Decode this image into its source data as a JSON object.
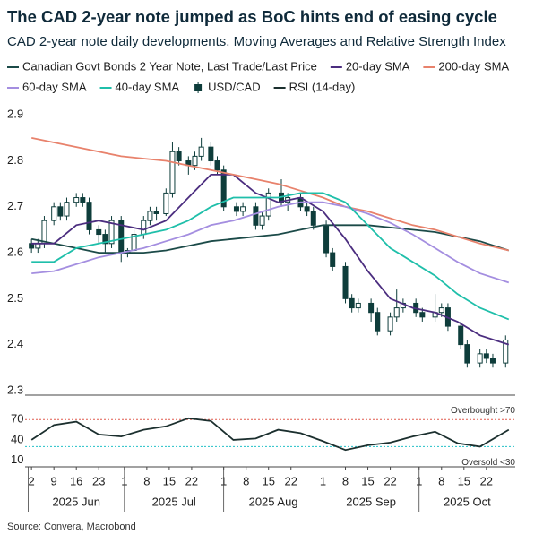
{
  "chart_data": [
    {
      "type": "candlestick",
      "title": "The CAD 2-year note jumped as BoC hints end of easing cycle",
      "subtitle": "CAD 2-year note daily developments, Moving Averages and Relative Strength Index",
      "source": "Source: Convera, Macrobond",
      "xlim": [
        "2025-05-31",
        "2025-10-31"
      ],
      "ylim": [
        2.29,
        2.92
      ],
      "yticks": [
        2.3,
        2.4,
        2.5,
        2.6,
        2.7,
        2.8,
        2.9
      ],
      "grid": false,
      "x": [
        "2025-06-02",
        "2025-06-09",
        "2025-06-16",
        "2025-06-23",
        "2025-06-30",
        "2025-07-07",
        "2025-07-14",
        "2025-07-21",
        "2025-07-28",
        "2025-08-04",
        "2025-08-11",
        "2025-08-18",
        "2025-08-25",
        "2025-09-01",
        "2025-09-08",
        "2025-09-15",
        "2025-09-22",
        "2025-09-29",
        "2025-10-06",
        "2025-10-13",
        "2025-10-20",
        "2025-10-29"
      ],
      "series": [
        {
          "name": "Canadian Govt Bonds 2 Year Note, Last Trade/Last Price",
          "color": "#1b4a48",
          "values": [
            2.63,
            2.62,
            2.61,
            2.6,
            2.6,
            2.6,
            2.605,
            2.615,
            2.625,
            2.63,
            2.635,
            2.64,
            2.65,
            2.66,
            2.66,
            2.66,
            2.655,
            2.65,
            2.645,
            2.635,
            2.625,
            2.605
          ]
        },
        {
          "name": "20-day SMA",
          "color": "#4b2d7f",
          "values": [
            2.62,
            2.62,
            2.66,
            2.67,
            2.66,
            2.65,
            2.67,
            2.72,
            2.77,
            2.77,
            2.73,
            2.71,
            2.72,
            2.69,
            2.63,
            2.56,
            2.5,
            2.48,
            2.47,
            2.45,
            2.42,
            2.4
          ]
        },
        {
          "name": "200-day SMA",
          "color": "#e8826c",
          "values": [
            2.85,
            2.84,
            2.83,
            2.82,
            2.81,
            2.805,
            2.8,
            2.79,
            2.78,
            2.77,
            2.76,
            2.75,
            2.735,
            2.72,
            2.7,
            2.69,
            2.675,
            2.66,
            2.65,
            2.635,
            2.62,
            2.605
          ]
        },
        {
          "name": "60-day SMA",
          "color": "#a48ee0",
          "values": [
            2.555,
            2.56,
            2.575,
            2.59,
            2.6,
            2.61,
            2.625,
            2.64,
            2.66,
            2.67,
            2.685,
            2.7,
            2.71,
            2.71,
            2.7,
            2.685,
            2.665,
            2.64,
            2.61,
            2.58,
            2.555,
            2.535
          ]
        },
        {
          "name": "40-day SMA",
          "color": "#1fbfaa",
          "values": [
            2.58,
            2.58,
            2.61,
            2.62,
            2.63,
            2.64,
            2.65,
            2.67,
            2.7,
            2.72,
            2.72,
            2.72,
            2.73,
            2.73,
            2.71,
            2.66,
            2.61,
            2.58,
            2.55,
            2.51,
            2.48,
            2.455
          ]
        }
      ],
      "candles": {
        "name": "USD/CAD",
        "up_color": "#ffffff",
        "down_color": "#0e3d3b",
        "edge_color": "#0e3d3b",
        "x": [
          "2025-06-02",
          "2025-06-04",
          "2025-06-06",
          "2025-06-09",
          "2025-06-11",
          "2025-06-13",
          "2025-06-16",
          "2025-06-18",
          "2025-06-20",
          "2025-06-23",
          "2025-06-25",
          "2025-06-27",
          "2025-06-30",
          "2025-07-02",
          "2025-07-04",
          "2025-07-07",
          "2025-07-09",
          "2025-07-11",
          "2025-07-14",
          "2025-07-16",
          "2025-07-18",
          "2025-07-21",
          "2025-07-23",
          "2025-07-25",
          "2025-07-28",
          "2025-07-30",
          "2025-08-01",
          "2025-08-05",
          "2025-08-07",
          "2025-08-11",
          "2025-08-13",
          "2025-08-15",
          "2025-08-19",
          "2025-08-21",
          "2025-08-25",
          "2025-08-27",
          "2025-08-29",
          "2025-09-02",
          "2025-09-04",
          "2025-09-08",
          "2025-09-10",
          "2025-09-12",
          "2025-09-16",
          "2025-09-18",
          "2025-09-22",
          "2025-09-24",
          "2025-09-26",
          "2025-09-30",
          "2025-10-02",
          "2025-10-06",
          "2025-10-08",
          "2025-10-10",
          "2025-10-14",
          "2025-10-16",
          "2025-10-20",
          "2025-10-22",
          "2025-10-24",
          "2025-10-28"
        ],
        "open": [
          2.62,
          2.61,
          2.62,
          2.67,
          2.7,
          2.68,
          2.71,
          2.72,
          2.71,
          2.65,
          2.64,
          2.62,
          2.67,
          2.6,
          2.605,
          2.64,
          2.67,
          2.69,
          2.685,
          2.73,
          2.82,
          2.8,
          2.79,
          2.81,
          2.83,
          2.8,
          2.78,
          2.7,
          2.69,
          2.7,
          2.66,
          2.68,
          2.73,
          2.71,
          2.72,
          2.7,
          2.69,
          2.66,
          2.6,
          2.57,
          2.5,
          2.48,
          2.49,
          2.47,
          2.43,
          2.46,
          2.48,
          2.49,
          2.47,
          2.46,
          2.47,
          2.48,
          2.44,
          2.4,
          2.36,
          2.38,
          2.37,
          2.36
        ],
        "high": [
          2.63,
          2.63,
          2.68,
          2.71,
          2.71,
          2.72,
          2.73,
          2.73,
          2.72,
          2.66,
          2.65,
          2.68,
          2.68,
          2.61,
          2.65,
          2.68,
          2.7,
          2.7,
          2.74,
          2.84,
          2.83,
          2.81,
          2.82,
          2.85,
          2.84,
          2.81,
          2.79,
          2.71,
          2.71,
          2.71,
          2.69,
          2.74,
          2.76,
          2.73,
          2.73,
          2.71,
          2.7,
          2.67,
          2.61,
          2.58,
          2.51,
          2.5,
          2.5,
          2.48,
          2.47,
          2.52,
          2.5,
          2.5,
          2.48,
          2.51,
          2.49,
          2.49,
          2.45,
          2.41,
          2.39,
          2.39,
          2.38,
          2.42
        ],
        "low": [
          2.6,
          2.6,
          2.61,
          2.66,
          2.67,
          2.67,
          2.7,
          2.7,
          2.64,
          2.62,
          2.6,
          2.61,
          2.58,
          2.59,
          2.6,
          2.63,
          2.66,
          2.67,
          2.68,
          2.72,
          2.79,
          2.77,
          2.78,
          2.8,
          2.79,
          2.77,
          2.69,
          2.68,
          2.68,
          2.65,
          2.65,
          2.67,
          2.7,
          2.69,
          2.69,
          2.68,
          2.65,
          2.59,
          2.56,
          2.49,
          2.47,
          2.47,
          2.45,
          2.42,
          2.42,
          2.45,
          2.47,
          2.46,
          2.45,
          2.45,
          2.46,
          2.43,
          2.39,
          2.35,
          2.35,
          2.36,
          2.35,
          2.35
        ],
        "close": [
          2.61,
          2.62,
          2.67,
          2.7,
          2.68,
          2.71,
          2.72,
          2.71,
          2.65,
          2.64,
          2.62,
          2.67,
          2.6,
          2.605,
          2.64,
          2.67,
          2.69,
          2.685,
          2.73,
          2.82,
          2.8,
          2.79,
          2.81,
          2.83,
          2.8,
          2.78,
          2.7,
          2.69,
          2.7,
          2.66,
          2.68,
          2.73,
          2.71,
          2.72,
          2.7,
          2.69,
          2.66,
          2.6,
          2.57,
          2.5,
          2.48,
          2.49,
          2.47,
          2.43,
          2.46,
          2.48,
          2.49,
          2.47,
          2.46,
          2.47,
          2.48,
          2.44,
          2.4,
          2.36,
          2.38,
          2.37,
          2.36,
          2.41
        ]
      }
    },
    {
      "type": "line",
      "xlim": [
        "2025-05-31",
        "2025-10-31"
      ],
      "ylim": [
        0,
        85
      ],
      "yticks": [
        10,
        40,
        70
      ],
      "x": [
        "2025-06-02",
        "2025-06-09",
        "2025-06-16",
        "2025-06-23",
        "2025-06-30",
        "2025-07-07",
        "2025-07-14",
        "2025-07-21",
        "2025-07-28",
        "2025-08-04",
        "2025-08-11",
        "2025-08-18",
        "2025-08-25",
        "2025-09-01",
        "2025-09-08",
        "2025-09-15",
        "2025-09-22",
        "2025-09-29",
        "2025-10-06",
        "2025-10-13",
        "2025-10-20",
        "2025-10-29"
      ],
      "series": [
        {
          "name": "RSI (14-day)",
          "color": "#1b2f2e",
          "values": [
            40,
            62,
            67,
            48,
            45,
            55,
            60,
            72,
            68,
            40,
            42,
            55,
            50,
            38,
            25,
            32,
            36,
            45,
            52,
            35,
            30,
            55
          ]
        }
      ],
      "hlines": [
        {
          "value": 70,
          "color": "#e05a4f",
          "label": "Overbought >70"
        },
        {
          "value": 30,
          "color": "#22c0c8",
          "label": "Oversold <30"
        }
      ],
      "xticks": [
        {
          "value": "2025-06-02",
          "label": "2"
        },
        {
          "value": "2025-06-09",
          "label": "9"
        },
        {
          "value": "2025-06-16",
          "label": "16"
        },
        {
          "value": "2025-06-23",
          "label": "23"
        },
        {
          "value": "2025-07-01",
          "label": "1"
        },
        {
          "value": "2025-07-08",
          "label": "8"
        },
        {
          "value": "2025-07-15",
          "label": "15"
        },
        {
          "value": "2025-07-22",
          "label": "22"
        },
        {
          "value": "2025-08-01",
          "label": "1"
        },
        {
          "value": "2025-08-08",
          "label": "8"
        },
        {
          "value": "2025-08-15",
          "label": "15"
        },
        {
          "value": "2025-08-22",
          "label": "22"
        },
        {
          "value": "2025-09-01",
          "label": "1"
        },
        {
          "value": "2025-09-08",
          "label": "8"
        },
        {
          "value": "2025-09-15",
          "label": "15"
        },
        {
          "value": "2025-09-22",
          "label": "22"
        },
        {
          "value": "2025-10-01",
          "label": "1"
        },
        {
          "value": "2025-10-08",
          "label": "8"
        },
        {
          "value": "2025-10-15",
          "label": "15"
        },
        {
          "value": "2025-10-22",
          "label": "22"
        }
      ],
      "months": [
        {
          "value": "2025-06",
          "label": "2025 Jun"
        },
        {
          "value": "2025-07",
          "label": "2025 Jul"
        },
        {
          "value": "2025-08",
          "label": "2025 Aug"
        },
        {
          "value": "2025-09",
          "label": "2025 Sep"
        },
        {
          "value": "2025-10",
          "label": "2025 Oct"
        }
      ]
    }
  ]
}
